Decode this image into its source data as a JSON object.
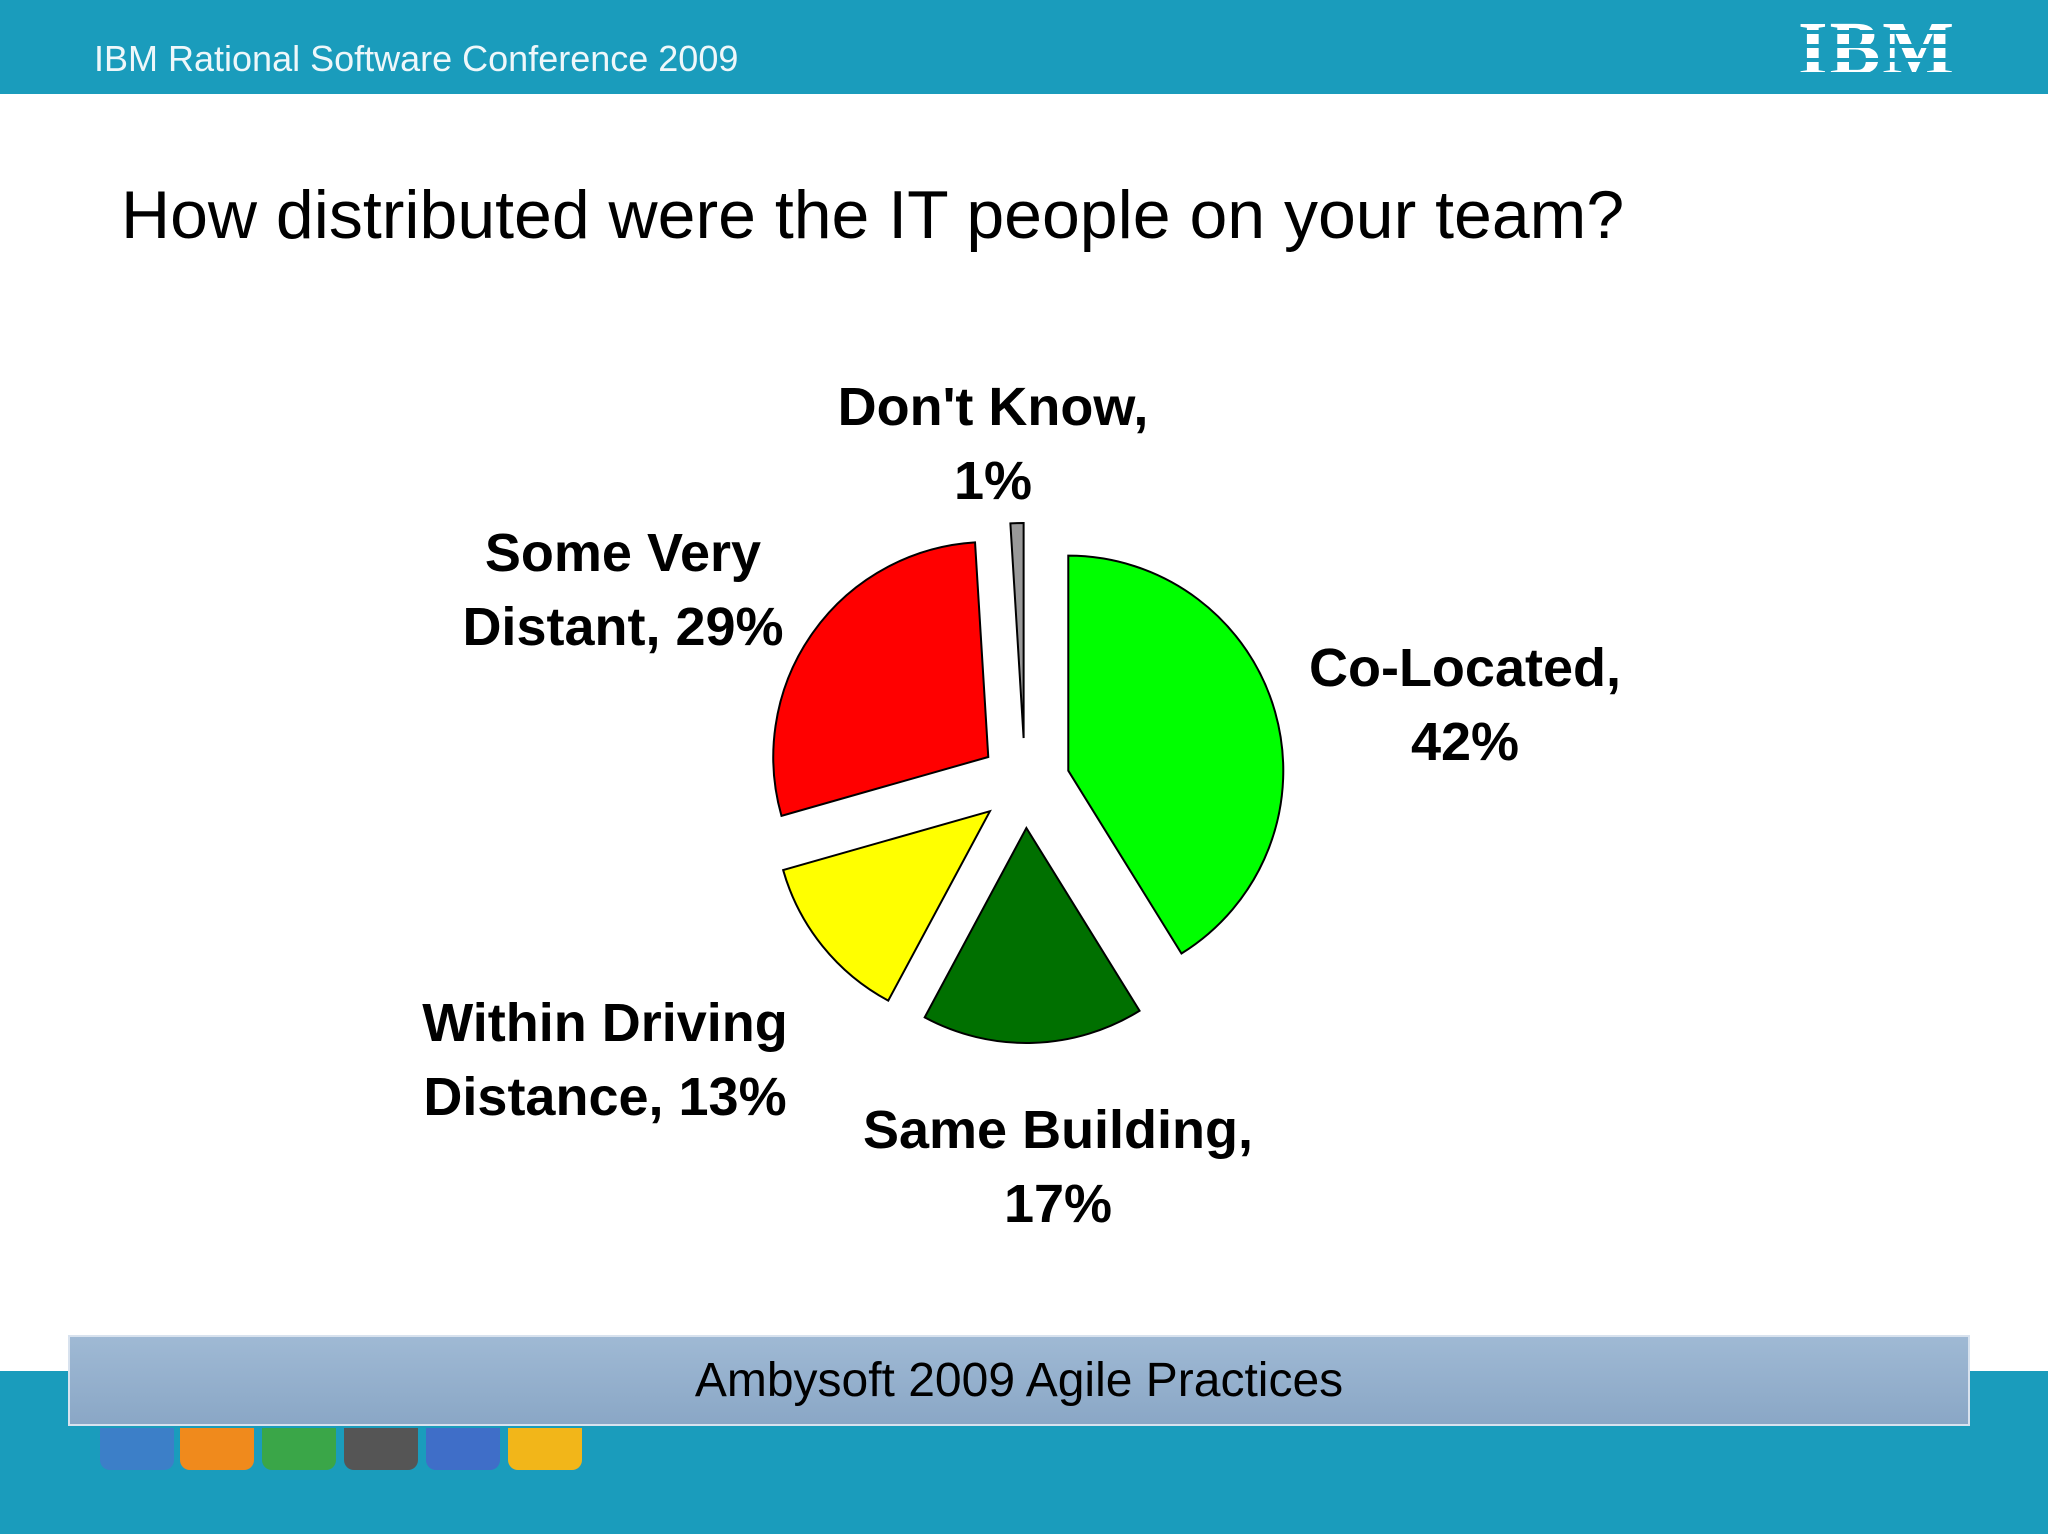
{
  "header": {
    "title": "IBM Rational Software Conference 2009",
    "logo": "IBM"
  },
  "chart_data": {
    "type": "pie",
    "title": "How distributed were the IT people on your team?",
    "values": [
      42,
      17,
      13,
      29,
      1
    ],
    "value_labels": [
      "Co-Located, 42%",
      "Same Building, 17%",
      "Within Driving Distance, 13%",
      "Some Very Distant, 29%",
      "Don't Know, 1%"
    ],
    "colors": [
      "#00ff00",
      "#007000",
      "#ffff00",
      "#ff0000",
      "#999999"
    ]
  },
  "footer": {
    "text": "Ambysoft 2009 Agile Practices"
  }
}
